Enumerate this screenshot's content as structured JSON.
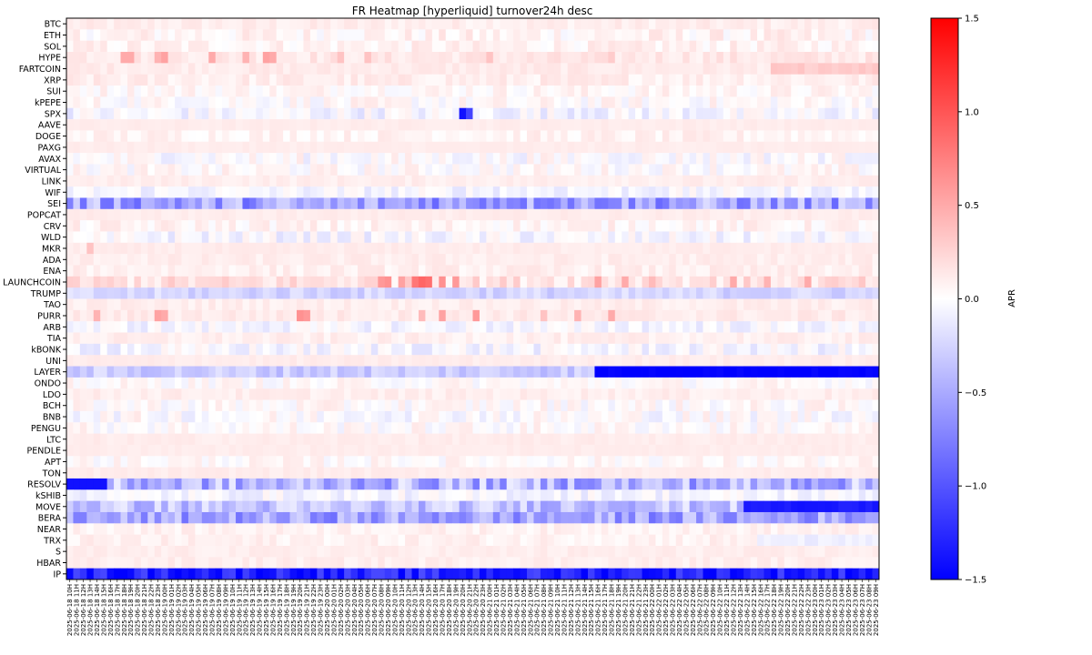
{
  "chart_data": {
    "type": "heatmap",
    "title": "FR Heatmap [hyperliquid] turnover24h desc",
    "colorbar": {
      "label": "APR",
      "range": [
        -1.5,
        1.5
      ],
      "ticks": [
        1.5,
        1.0,
        0.5,
        0.0,
        -0.5,
        -1.0,
        -1.5
      ],
      "tick_labels": [
        "1.5",
        "1.0",
        "0.5",
        "0.0",
        "−0.5",
        "−1.0",
        "−1.5"
      ],
      "colormap": {
        "low": "#0000ff",
        "mid": "#ffffff",
        "high": "#ff0000"
      }
    },
    "rows": [
      "BTC",
      "ETH",
      "SOL",
      "HYPE",
      "FARTCOIN",
      "XRP",
      "SUI",
      "kPEPE",
      "SPX",
      "AAVE",
      "DOGE",
      "PAXG",
      "AVAX",
      "VIRTUAL",
      "LINK",
      "WIF",
      "SEI",
      "POPCAT",
      "CRV",
      "WLD",
      "MKR",
      "ADA",
      "ENA",
      "LAUNCHCOIN",
      "TRUMP",
      "TAO",
      "PURR",
      "ARB",
      "TIA",
      "kBONK",
      "UNI",
      "LAYER",
      "ONDO",
      "LDO",
      "BCH",
      "BNB",
      "PENGU",
      "LTC",
      "PENDLE",
      "APT",
      "TON",
      "RESOLV",
      "kSHIB",
      "MOVE",
      "BERA",
      "NEAR",
      "TRX",
      "S",
      "HBAR",
      "IP"
    ],
    "x_start": "2025-06-18 10H",
    "x_end": "2025-06-23 09H",
    "x_step_hours": 1,
    "baseline_apr": 0.11,
    "row_profiles": {
      "BTC": {
        "base": 0.1,
        "noise": 0.06,
        "shift_at": null,
        "after": null
      },
      "ETH": {
        "base": 0.06,
        "noise": 0.12,
        "shift_at": null,
        "after": null
      },
      "SOL": {
        "base": 0.07,
        "noise": 0.1,
        "shift_at": null,
        "after": null
      },
      "HYPE": {
        "base": 0.14,
        "noise": 0.08,
        "shift_at": null,
        "after": null,
        "spikes": [
          [
            8,
            0.5
          ],
          [
            9,
            0.5
          ],
          [
            13,
            0.45
          ],
          [
            14,
            0.55
          ],
          [
            21,
            0.5
          ],
          [
            26,
            0.45
          ],
          [
            29,
            0.55
          ],
          [
            30,
            0.5
          ],
          [
            40,
            0.35
          ],
          [
            44,
            0.35
          ],
          [
            62,
            0.35
          ],
          [
            80,
            0.3
          ]
        ]
      },
      "FARTCOIN": {
        "base": 0.12,
        "noise": 0.05,
        "shift_at": 104,
        "after": 0.3
      },
      "XRP": {
        "base": 0.1,
        "noise": 0.08,
        "shift_at": null,
        "after": null
      },
      "SUI": {
        "base": 0.05,
        "noise": 0.1,
        "shift_at": null,
        "after": null
      },
      "kPEPE": {
        "base": 0.02,
        "noise": 0.12,
        "shift_at": null,
        "after": null
      },
      "SPX": {
        "base": -0.05,
        "noise": 0.15,
        "shift_at": null,
        "after": null,
        "spikes": [
          [
            58,
            -1.4
          ],
          [
            59,
            -1.1
          ]
        ]
      },
      "AAVE": {
        "base": 0.11,
        "noise": 0.02,
        "shift_at": null,
        "after": null
      },
      "DOGE": {
        "base": 0.07,
        "noise": 0.08,
        "shift_at": null,
        "after": null
      },
      "PAXG": {
        "base": 0.11,
        "noise": 0.02,
        "shift_at": null,
        "after": null
      },
      "AVAX": {
        "base": 0.0,
        "noise": 0.14,
        "shift_at": null,
        "after": null
      },
      "VIRTUAL": {
        "base": 0.02,
        "noise": 0.12,
        "shift_at": null,
        "after": null
      },
      "LINK": {
        "base": 0.1,
        "noise": 0.04,
        "shift_at": null,
        "after": null
      },
      "WIF": {
        "base": -0.05,
        "noise": 0.12,
        "shift_at": null,
        "after": null
      },
      "SEI": {
        "base": -0.55,
        "noise": 0.35,
        "shift_at": null,
        "after": null
      },
      "POPCAT": {
        "base": 0.11,
        "noise": 0.03,
        "shift_at": null,
        "after": null
      },
      "CRV": {
        "base": 0.06,
        "noise": 0.1,
        "shift_at": null,
        "after": null
      },
      "WLD": {
        "base": -0.05,
        "noise": 0.14,
        "shift_at": null,
        "after": null
      },
      "MKR": {
        "base": 0.11,
        "noise": 0.03,
        "shift_at": null,
        "after": null,
        "spikes": [
          [
            3,
            0.35
          ]
        ]
      },
      "ADA": {
        "base": 0.1,
        "noise": 0.05,
        "shift_at": null,
        "after": null
      },
      "ENA": {
        "base": 0.09,
        "noise": 0.07,
        "shift_at": null,
        "after": null
      },
      "LAUNCHCOIN": {
        "base": 0.18,
        "noise": 0.15,
        "shift_at": null,
        "after": null,
        "spikes": [
          [
            46,
            0.6
          ],
          [
            47,
            0.65
          ],
          [
            49,
            0.55
          ],
          [
            51,
            0.8
          ],
          [
            52,
            0.9
          ],
          [
            53,
            0.85
          ],
          [
            55,
            0.65
          ],
          [
            57,
            0.6
          ],
          [
            78,
            0.55
          ],
          [
            82,
            0.5
          ],
          [
            86,
            0.4
          ],
          [
            98,
            0.5
          ],
          [
            103,
            0.45
          ],
          [
            109,
            0.5
          ]
        ]
      },
      "TRUMP": {
        "base": -0.25,
        "noise": 0.12,
        "shift_at": null,
        "after": null
      },
      "TAO": {
        "base": 0.1,
        "noise": 0.05,
        "shift_at": null,
        "after": null
      },
      "PURR": {
        "base": 0.12,
        "noise": 0.06,
        "shift_at": null,
        "after": null,
        "spikes": [
          [
            4,
            0.45
          ],
          [
            13,
            0.55
          ],
          [
            14,
            0.5
          ],
          [
            34,
            0.65
          ],
          [
            35,
            0.6
          ],
          [
            52,
            0.4
          ],
          [
            55,
            0.55
          ],
          [
            60,
            0.6
          ],
          [
            70,
            0.35
          ],
          [
            75,
            0.45
          ],
          [
            80,
            0.5
          ]
        ]
      },
      "ARB": {
        "base": -0.05,
        "noise": 0.12,
        "shift_at": null,
        "after": null
      },
      "TIA": {
        "base": 0.09,
        "noise": 0.06,
        "shift_at": null,
        "after": null
      },
      "kBONK": {
        "base": -0.05,
        "noise": 0.14,
        "shift_at": null,
        "after": null
      },
      "UNI": {
        "base": 0.11,
        "noise": 0.03,
        "shift_at": null,
        "after": null
      },
      "LAYER": {
        "base": -0.3,
        "noise": 0.15,
        "shift_at": 78,
        "after": -1.5
      },
      "ONDO": {
        "base": 0.02,
        "noise": 0.1,
        "shift_at": null,
        "after": null
      },
      "LDO": {
        "base": 0.1,
        "noise": 0.05,
        "shift_at": null,
        "after": null
      },
      "BCH": {
        "base": 0.02,
        "noise": 0.12,
        "shift_at": null,
        "after": null
      },
      "BNB": {
        "base": 0.0,
        "noise": 0.14,
        "shift_at": null,
        "after": null
      },
      "PENGU": {
        "base": 0.02,
        "noise": 0.12,
        "shift_at": null,
        "after": null
      },
      "LTC": {
        "base": 0.11,
        "noise": 0.03,
        "shift_at": null,
        "after": null
      },
      "PENDLE": {
        "base": 0.11,
        "noise": 0.02,
        "shift_at": null,
        "after": null
      },
      "APT": {
        "base": 0.03,
        "noise": 0.1,
        "shift_at": null,
        "after": null
      },
      "TON": {
        "base": 0.11,
        "noise": 0.03,
        "shift_at": null,
        "after": null
      },
      "RESOLV": {
        "base": -0.45,
        "noise": 0.35,
        "shift_at": null,
        "after": null,
        "lead": -1.4,
        "lead_cols": 6
      },
      "kSHIB": {
        "base": -0.05,
        "noise": 0.12,
        "shift_at": null,
        "after": null
      },
      "MOVE": {
        "base": -0.35,
        "noise": 0.25,
        "shift_at": 100,
        "after": -1.35
      },
      "BERA": {
        "base": -0.55,
        "noise": 0.3,
        "shift_at": null,
        "after": null
      },
      "NEAR": {
        "base": 0.08,
        "noise": 0.06,
        "shift_at": null,
        "after": null
      },
      "TRX": {
        "base": 0.08,
        "noise": 0.07,
        "shift_at": 102,
        "after": -0.1
      },
      "S": {
        "base": 0.1,
        "noise": 0.04,
        "shift_at": null,
        "after": null
      },
      "HBAR": {
        "base": 0.1,
        "noise": 0.05,
        "shift_at": null,
        "after": null
      },
      "IP": {
        "base": -1.3,
        "noise": 0.25,
        "shift_at": null,
        "after": null
      }
    }
  }
}
